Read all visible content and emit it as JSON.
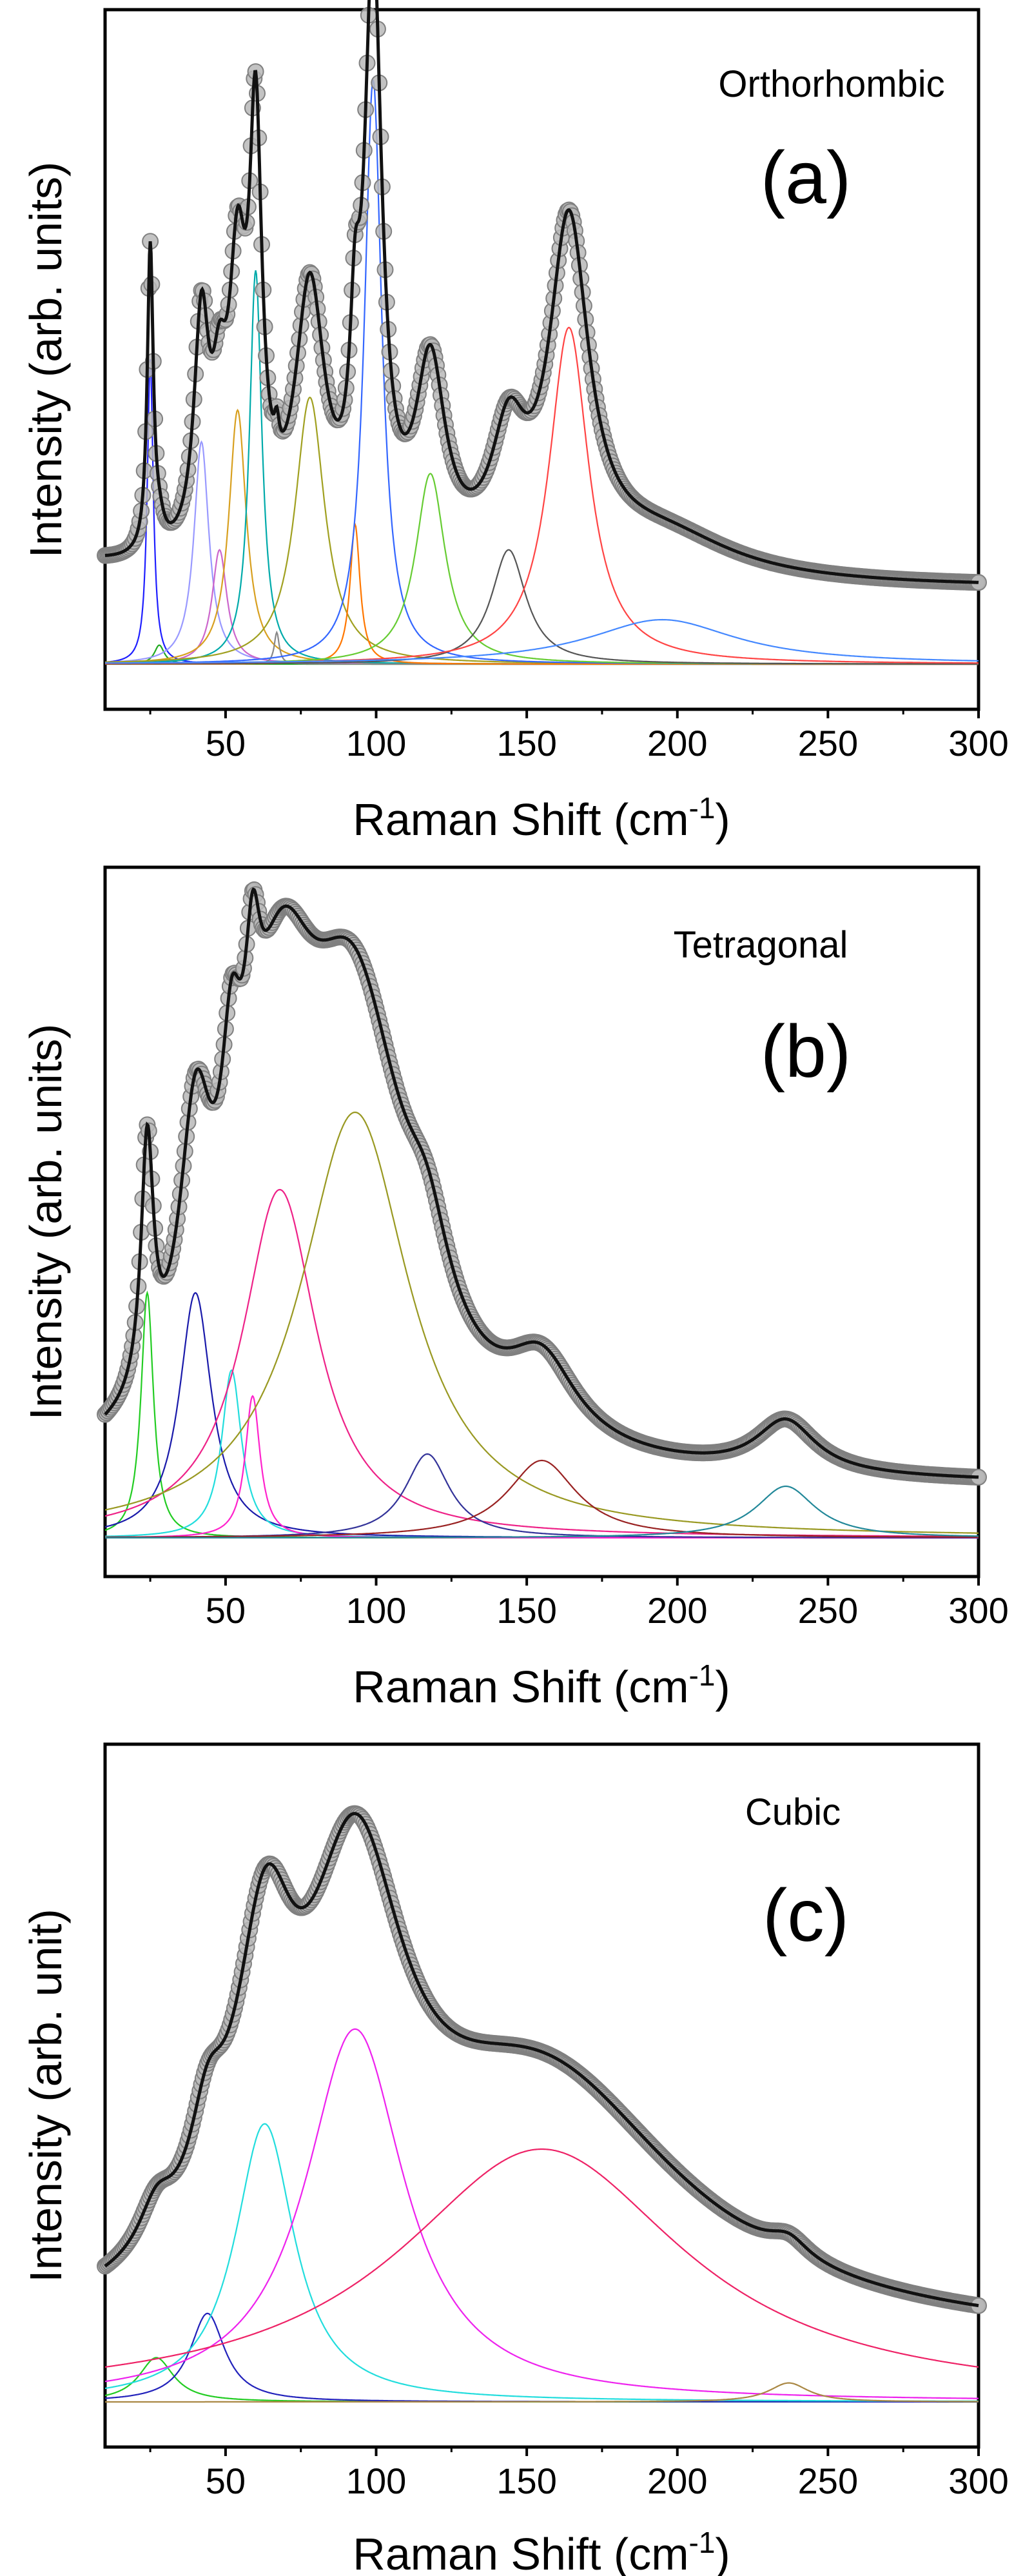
{
  "chart_data": [
    {
      "type": "line",
      "panel_label": "(a)",
      "phase": "Orthorhombic",
      "xlabel": "Raman Shift (cm",
      "xlabel_sup": "-1",
      "xlabel_tail": ")",
      "ylabel": "Intensity (arb. units)",
      "xlim": [
        10,
        300
      ],
      "ylim": [
        0,
        1.0
      ],
      "xticks": [
        50,
        100,
        150,
        200,
        250,
        300
      ],
      "baseline": 0.12,
      "background": {
        "x0": 10,
        "amp": 0.03
      },
      "peaks": [
        {
          "center": 25,
          "width": 1.2,
          "height": 0.48,
          "color": "#1f1fff"
        },
        {
          "center": 28,
          "width": 2.0,
          "height": 0.03,
          "color": "#22aa22"
        },
        {
          "center": 42,
          "width": 3.0,
          "height": 0.35,
          "color": "#9999ff"
        },
        {
          "center": 48,
          "width": 3.0,
          "height": 0.18,
          "color": "#cc66cc"
        },
        {
          "center": 54,
          "width": 3.5,
          "height": 0.4,
          "color": "#d8a020"
        },
        {
          "center": 60,
          "width": 2.5,
          "height": 0.62,
          "color": "#00aaaa"
        },
        {
          "center": 67,
          "width": 1.0,
          "height": 0.05,
          "color": "#888888"
        },
        {
          "center": 78,
          "width": 6.0,
          "height": 0.42,
          "color": "#a0a020"
        },
        {
          "center": 93,
          "width": 2.0,
          "height": 0.22,
          "color": "#ff7700"
        },
        {
          "center": 99,
          "width": 3.5,
          "height": 0.92,
          "color": "#3366ff"
        },
        {
          "center": 118,
          "width": 6.0,
          "height": 0.3,
          "color": "#66cc33"
        },
        {
          "center": 144,
          "width": 7.0,
          "height": 0.18,
          "color": "#555555"
        },
        {
          "center": 164,
          "width": 8.0,
          "height": 0.53,
          "color": "#ff4444"
        },
        {
          "center": 195,
          "width": 30.0,
          "height": 0.07,
          "color": "#4488ff"
        }
      ]
    },
    {
      "type": "line",
      "panel_label": "(b)",
      "phase": "Tetragonal",
      "xlabel": "Raman Shift (cm",
      "xlabel_sup": "-1",
      "xlabel_tail": ")",
      "ylabel": "Intensity (arb. units)",
      "xlim": [
        10,
        300
      ],
      "ylim": [
        0,
        1.0
      ],
      "xticks": [
        50,
        100,
        150,
        200,
        250,
        300
      ],
      "baseline": 0.08,
      "background": {
        "x0": 10,
        "amp": 0.0
      },
      "peaks": [
        {
          "center": 24,
          "width": 2.5,
          "height": 0.38,
          "color": "#22cc22"
        },
        {
          "center": 40,
          "width": 6.5,
          "height": 0.38,
          "color": "#1a1aaa"
        },
        {
          "center": 52,
          "width": 4.0,
          "height": 0.26,
          "color": "#22dddd"
        },
        {
          "center": 59,
          "width": 3.0,
          "height": 0.22,
          "color": "#ff22cc"
        },
        {
          "center": 68,
          "width": 15.0,
          "height": 0.54,
          "color": "#ee2288"
        },
        {
          "center": 93,
          "width": 22.0,
          "height": 0.66,
          "color": "#999922"
        },
        {
          "center": 117,
          "width": 9.0,
          "height": 0.13,
          "color": "#333399"
        },
        {
          "center": 155,
          "width": 14.0,
          "height": 0.12,
          "color": "#992222"
        },
        {
          "center": 236,
          "width": 12.0,
          "height": 0.08,
          "color": "#228899"
        }
      ]
    },
    {
      "type": "line",
      "panel_label": "(c)",
      "phase": "Cubic",
      "xlabel": "Raman Shift (cm",
      "xlabel_sup": "-1",
      "xlabel_tail": ")",
      "ylabel": "Intensity (arb. unit)",
      "xlim": [
        10,
        300
      ],
      "ylim": [
        0,
        1.0
      ],
      "xticks": [
        50,
        100,
        150,
        200,
        250,
        300
      ],
      "baseline": 0.09,
      "background": {
        "x0": 10,
        "amp": 0.0
      },
      "peaks": [
        {
          "center": 27,
          "width": 7.0,
          "height": 0.07,
          "color": "#22cc22"
        },
        {
          "center": 44,
          "width": 7.0,
          "height": 0.14,
          "color": "#2222bb"
        },
        {
          "center": 63,
          "width": 12.0,
          "height": 0.44,
          "color": "#22dddd"
        },
        {
          "center": 93,
          "width": 20.0,
          "height": 0.59,
          "color": "#ee22ee"
        },
        {
          "center": 155,
          "width": 58.0,
          "height": 0.4,
          "color": "#ee2266"
        },
        {
          "center": 237,
          "width": 8.0,
          "height": 0.03,
          "color": "#aa8844"
        }
      ]
    }
  ]
}
